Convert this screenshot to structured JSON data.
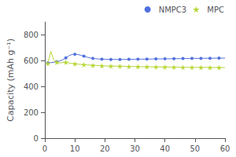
{
  "chart_data": {
    "type": "line",
    "ylabel": "Capacity (mAh g⁻¹)",
    "x": [
      1,
      2,
      3,
      4,
      5,
      6,
      7,
      8,
      9,
      10,
      11,
      12,
      13,
      14,
      15,
      16,
      17,
      18,
      19,
      20,
      21,
      22,
      23,
      24,
      25,
      26,
      27,
      28,
      29,
      30,
      31,
      32,
      33,
      34,
      35,
      36,
      37,
      38,
      39,
      40,
      41,
      42,
      43,
      44,
      45,
      46,
      47,
      48,
      49,
      50,
      51,
      52,
      53,
      54,
      55,
      56,
      57,
      58,
      59,
      60
    ],
    "series": [
      {
        "name": "NMPC3",
        "marker": "circle",
        "values": [
          582,
          585,
          588,
          592,
          598,
          608,
          622,
          638,
          648,
          650,
          648,
          642,
          635,
          628,
          622,
          618,
          615,
          613,
          612,
          611,
          610,
          610,
          610,
          610,
          610,
          610,
          610,
          611,
          611,
          611,
          612,
          612,
          612,
          613,
          613,
          613,
          614,
          614,
          614,
          615,
          615,
          615,
          616,
          616,
          616,
          617,
          617,
          617,
          618,
          618,
          618,
          618,
          619,
          619,
          619,
          619,
          620,
          620,
          620,
          620
        ]
      },
      {
        "name": "MPC",
        "marker": "star",
        "values": [
          578,
          672,
          605,
          588,
          582,
          586,
          588,
          582,
          578,
          576,
          573,
          571,
          569,
          567,
          566,
          564,
          563,
          562,
          561,
          560,
          559,
          558,
          558,
          557,
          557,
          556,
          556,
          555,
          555,
          555,
          554,
          554,
          553,
          553,
          553,
          552,
          552,
          552,
          551,
          551,
          551,
          550,
          550,
          550,
          550,
          549,
          549,
          549,
          549,
          548,
          548,
          548,
          548,
          548,
          547,
          547,
          547,
          547,
          547,
          547
        ]
      }
    ],
    "xlim": [
      0,
      60
    ],
    "xticks": [
      0,
      10,
      20,
      30,
      40,
      50,
      60
    ],
    "ylim": [
      0,
      900
    ],
    "yticks": [
      0,
      200,
      400,
      600,
      800
    ],
    "grid": false,
    "legend": "upper right"
  }
}
